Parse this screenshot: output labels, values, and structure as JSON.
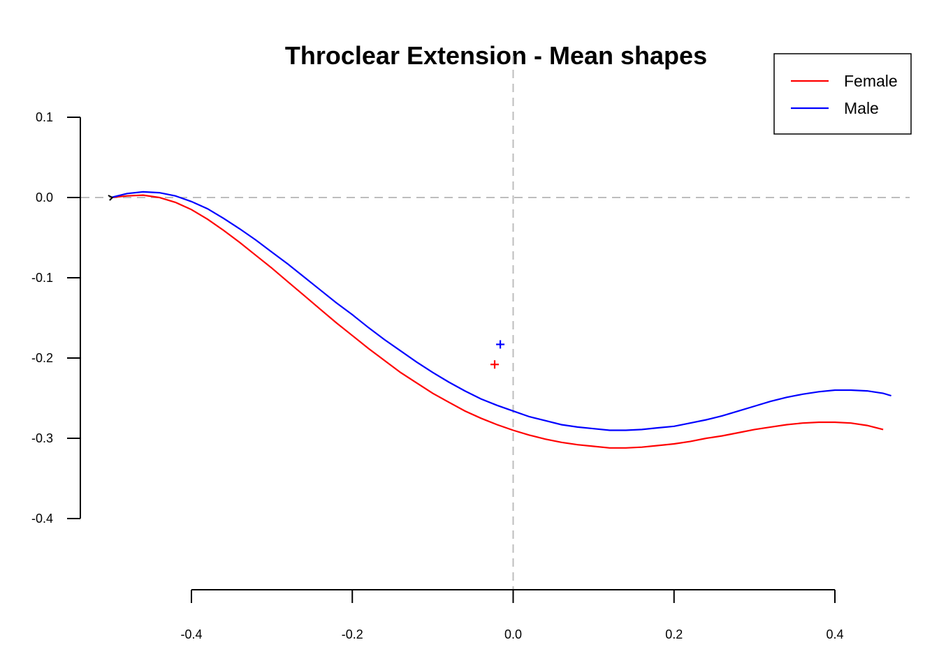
{
  "chart_data": {
    "type": "line",
    "title": "Throclear Extension - Mean shapes",
    "xlabel": "",
    "ylabel": "",
    "x_ticks": [
      {
        "value": -0.4,
        "label": "-0.4"
      },
      {
        "value": -0.2,
        "label": "-0.2"
      },
      {
        "value": 0.0,
        "label": "0.0"
      },
      {
        "value": 0.2,
        "label": "0.2"
      },
      {
        "value": 0.4,
        "label": "0.4"
      }
    ],
    "y_ticks": [
      {
        "value": 0.1,
        "label": "0.1"
      },
      {
        "value": 0.0,
        "label": "0.0"
      },
      {
        "value": -0.1,
        "label": "-0.1"
      },
      {
        "value": -0.2,
        "label": "-0.2"
      },
      {
        "value": -0.3,
        "label": "-0.3"
      },
      {
        "value": -0.4,
        "label": "-0.4"
      }
    ],
    "xlim": [
      -0.4,
      0.4
    ],
    "ylim": [
      -0.4,
      0.1
    ],
    "reference_lines": {
      "x": 0,
      "y": 0,
      "style": "dashed",
      "color": "#bdbdbd"
    },
    "legend": {
      "position": "top-right",
      "entries": [
        "Female",
        "Male"
      ]
    },
    "series": [
      {
        "name": "Female",
        "color": "#ff0000",
        "points": [
          [
            -0.5,
            0.0
          ],
          [
            -0.48,
            0.002
          ],
          [
            -0.46,
            0.003
          ],
          [
            -0.44,
            0.0
          ],
          [
            -0.42,
            -0.006
          ],
          [
            -0.4,
            -0.015
          ],
          [
            -0.38,
            -0.027
          ],
          [
            -0.36,
            -0.041
          ],
          [
            -0.34,
            -0.056
          ],
          [
            -0.32,
            -0.072
          ],
          [
            -0.3,
            -0.088
          ],
          [
            -0.28,
            -0.105
          ],
          [
            -0.26,
            -0.122
          ],
          [
            -0.24,
            -0.139
          ],
          [
            -0.22,
            -0.156
          ],
          [
            -0.2,
            -0.172
          ],
          [
            -0.18,
            -0.188
          ],
          [
            -0.16,
            -0.203
          ],
          [
            -0.14,
            -0.218
          ],
          [
            -0.12,
            -0.231
          ],
          [
            -0.1,
            -0.244
          ],
          [
            -0.08,
            -0.255
          ],
          [
            -0.06,
            -0.266
          ],
          [
            -0.04,
            -0.275
          ],
          [
            -0.02,
            -0.283
          ],
          [
            0.0,
            -0.29
          ],
          [
            0.02,
            -0.296
          ],
          [
            0.04,
            -0.301
          ],
          [
            0.06,
            -0.305
          ],
          [
            0.08,
            -0.308
          ],
          [
            0.1,
            -0.31
          ],
          [
            0.12,
            -0.312
          ],
          [
            0.14,
            -0.312
          ],
          [
            0.16,
            -0.311
          ],
          [
            0.18,
            -0.309
          ],
          [
            0.2,
            -0.307
          ],
          [
            0.22,
            -0.304
          ],
          [
            0.24,
            -0.3
          ],
          [
            0.26,
            -0.297
          ],
          [
            0.28,
            -0.293
          ],
          [
            0.3,
            -0.289
          ],
          [
            0.32,
            -0.286
          ],
          [
            0.34,
            -0.283
          ],
          [
            0.36,
            -0.281
          ],
          [
            0.38,
            -0.28
          ],
          [
            0.4,
            -0.28
          ],
          [
            0.42,
            -0.281
          ],
          [
            0.44,
            -0.284
          ],
          [
            0.46,
            -0.289
          ]
        ],
        "centroid": [
          -0.023,
          -0.208
        ]
      },
      {
        "name": "Male",
        "color": "#0000ff",
        "points": [
          [
            -0.5,
            0.0
          ],
          [
            -0.48,
            0.005
          ],
          [
            -0.46,
            0.007
          ],
          [
            -0.44,
            0.006
          ],
          [
            -0.42,
            0.002
          ],
          [
            -0.4,
            -0.005
          ],
          [
            -0.38,
            -0.014
          ],
          [
            -0.36,
            -0.026
          ],
          [
            -0.34,
            -0.039
          ],
          [
            -0.32,
            -0.053
          ],
          [
            -0.3,
            -0.068
          ],
          [
            -0.28,
            -0.083
          ],
          [
            -0.26,
            -0.099
          ],
          [
            -0.24,
            -0.115
          ],
          [
            -0.22,
            -0.131
          ],
          [
            -0.2,
            -0.146
          ],
          [
            -0.18,
            -0.162
          ],
          [
            -0.16,
            -0.177
          ],
          [
            -0.14,
            -0.191
          ],
          [
            -0.12,
            -0.205
          ],
          [
            -0.1,
            -0.218
          ],
          [
            -0.08,
            -0.23
          ],
          [
            -0.06,
            -0.241
          ],
          [
            -0.04,
            -0.251
          ],
          [
            -0.02,
            -0.259
          ],
          [
            0.0,
            -0.266
          ],
          [
            0.02,
            -0.273
          ],
          [
            0.04,
            -0.278
          ],
          [
            0.06,
            -0.283
          ],
          [
            0.08,
            -0.286
          ],
          [
            0.1,
            -0.288
          ],
          [
            0.12,
            -0.29
          ],
          [
            0.14,
            -0.29
          ],
          [
            0.16,
            -0.289
          ],
          [
            0.18,
            -0.287
          ],
          [
            0.2,
            -0.285
          ],
          [
            0.22,
            -0.281
          ],
          [
            0.24,
            -0.277
          ],
          [
            0.26,
            -0.272
          ],
          [
            0.28,
            -0.266
          ],
          [
            0.3,
            -0.26
          ],
          [
            0.32,
            -0.254
          ],
          [
            0.34,
            -0.249
          ],
          [
            0.36,
            -0.245
          ],
          [
            0.38,
            -0.242
          ],
          [
            0.4,
            -0.24
          ],
          [
            0.42,
            -0.24
          ],
          [
            0.44,
            -0.241
          ],
          [
            0.46,
            -0.244
          ],
          [
            0.47,
            -0.247
          ]
        ],
        "centroid": [
          -0.016,
          -0.183
        ]
      }
    ]
  }
}
